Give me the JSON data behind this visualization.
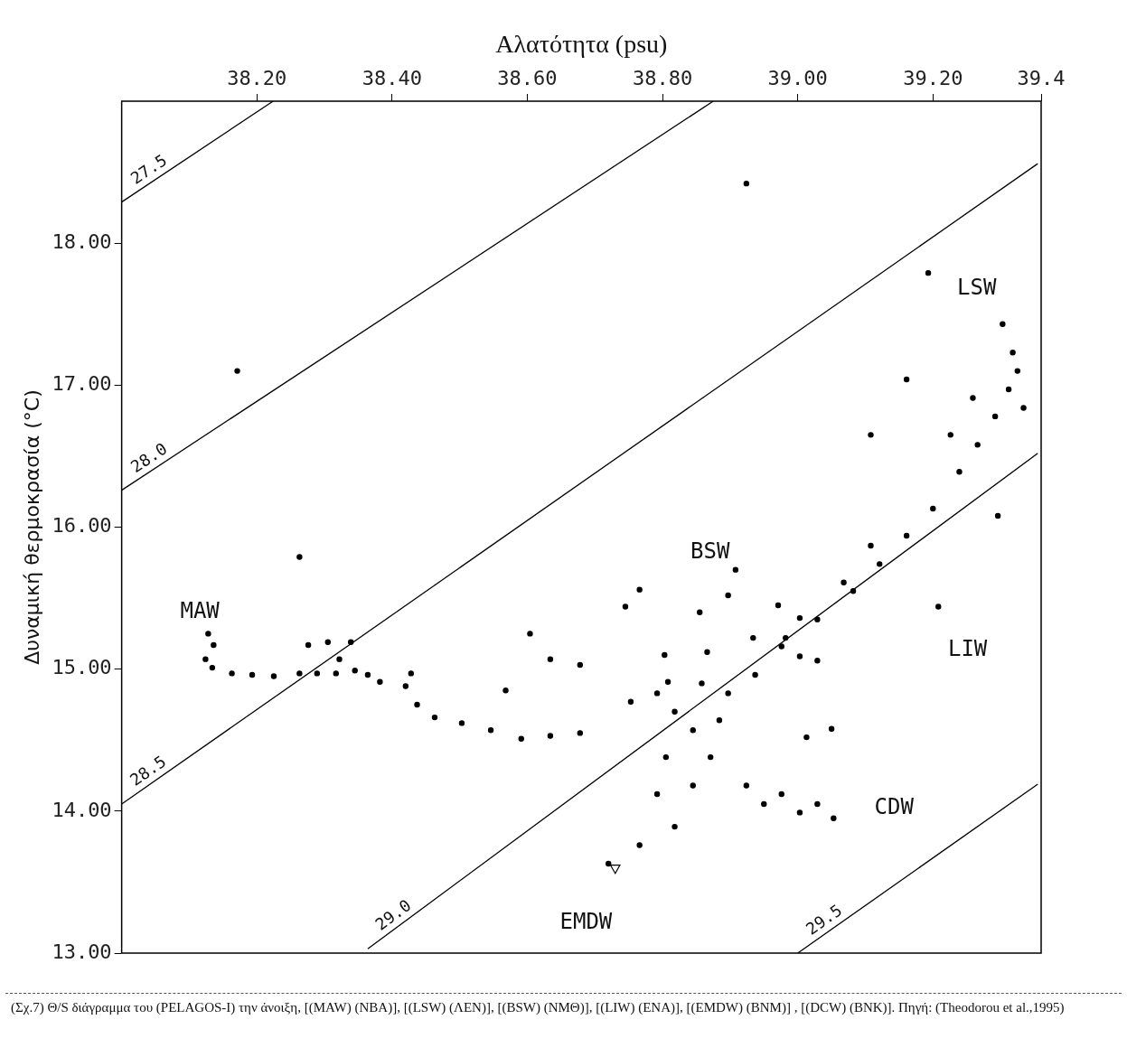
{
  "chart_data": {
    "type": "scatter",
    "xlabel": "Αλατότητα (psu)",
    "ylabel": "Δυναμική θερμοκρασία (°C)",
    "xlim": [
      38.0,
      39.36
    ],
    "xticks": [
      {
        "value": 38.2,
        "label": "38.20"
      },
      {
        "value": 38.4,
        "label": "38.40"
      },
      {
        "value": 38.6,
        "label": "38.60"
      },
      {
        "value": 38.8,
        "label": "38.80"
      },
      {
        "value": 39.0,
        "label": "39.00"
      },
      {
        "value": 39.2,
        "label": "39.20"
      },
      {
        "value": 39.36,
        "label": "39.4"
      }
    ],
    "ylim": [
      13.0,
      19.0
    ],
    "yticks": [
      {
        "value": 13,
        "label": "13.00"
      },
      {
        "value": 14,
        "label": "14.00"
      },
      {
        "value": 15,
        "label": "15.00"
      },
      {
        "value": 16,
        "label": "16.00"
      },
      {
        "value": 17,
        "label": "17.00"
      },
      {
        "value": 18,
        "label": "18.00"
      }
    ],
    "grid": false,
    "legend": false,
    "series": [
      {
        "type": "line",
        "name": "27.5",
        "color": "#000000",
        "marker": "none",
        "x": [
          38.0,
          38.224
        ],
        "values": [
          18.29,
          19.0
        ]
      },
      {
        "type": "line",
        "name": "28.0",
        "color": "#000000",
        "marker": "none",
        "x": [
          38.0,
          38.875
        ],
        "values": [
          16.26,
          19.0
        ]
      },
      {
        "type": "line",
        "name": "28.5",
        "color": "#000000",
        "marker": "none",
        "x": [
          38.0,
          39.355
        ],
        "values": [
          14.05,
          18.56
        ]
      },
      {
        "type": "line",
        "name": "29.0",
        "color": "#000000",
        "marker": "none",
        "x": [
          38.364,
          39.355
        ],
        "values": [
          13.03,
          16.52
        ]
      },
      {
        "type": "line",
        "name": "29.5",
        "color": "#000000",
        "marker": "none",
        "x": [
          39.0,
          39.355
        ],
        "values": [
          13.0,
          14.19
        ]
      },
      {
        "type": "scatter",
        "color": "#000000",
        "marker": "circle",
        "x": [
          38.128,
          38.136,
          38.124,
          38.134,
          38.163,
          38.193,
          38.225,
          38.263,
          38.289,
          38.317,
          38.276,
          38.305,
          38.339,
          38.322,
          38.345,
          38.364,
          38.382,
          38.428,
          38.42,
          38.437,
          38.463,
          38.503,
          38.546,
          38.591,
          38.634,
          38.678,
          38.604,
          38.634,
          38.678,
          38.568,
          38.908,
          38.897,
          38.766,
          38.745,
          38.855,
          38.971,
          39.003,
          38.803,
          38.808,
          38.866,
          38.934,
          38.982,
          39.029,
          39.05,
          39.013,
          39.208,
          38.924,
          39.193,
          38.171,
          39.161,
          39.108,
          39.296,
          38.263,
          38.72,
          38.766,
          38.818,
          38.792,
          38.845,
          38.871,
          38.805,
          38.845,
          38.884,
          38.897,
          38.937,
          38.976,
          39.029,
          39.082,
          39.121,
          39.161,
          39.2,
          39.239,
          39.266,
          39.292,
          39.312,
          39.325,
          39.318,
          39.303,
          39.334,
          39.226,
          39.259,
          39.108,
          39.068,
          39.003,
          38.924,
          38.976,
          39.029,
          39.053,
          39.003,
          38.95,
          38.858,
          38.818,
          38.792,
          38.753
        ],
        "values": [
          15.25,
          15.17,
          15.07,
          15.01,
          14.97,
          14.96,
          14.95,
          14.97,
          14.97,
          14.97,
          15.17,
          15.19,
          15.19,
          15.07,
          14.99,
          14.96,
          14.91,
          14.97,
          14.88,
          14.75,
          14.66,
          14.62,
          14.57,
          14.51,
          14.53,
          14.55,
          15.25,
          15.07,
          15.03,
          14.85,
          15.7,
          15.52,
          15.56,
          15.44,
          15.4,
          15.45,
          15.36,
          15.1,
          14.91,
          15.12,
          15.22,
          15.22,
          15.06,
          14.58,
          14.52,
          15.44,
          18.42,
          17.79,
          17.1,
          17.04,
          16.65,
          16.08,
          15.79,
          13.63,
          13.76,
          13.89,
          14.12,
          14.18,
          14.38,
          14.38,
          14.57,
          14.64,
          14.83,
          14.96,
          15.16,
          15.35,
          15.55,
          15.74,
          15.94,
          16.13,
          16.39,
          16.58,
          16.78,
          16.97,
          17.1,
          17.23,
          17.43,
          16.84,
          16.65,
          16.91,
          15.87,
          15.61,
          15.09,
          14.18,
          14.12,
          14.05,
          13.95,
          13.99,
          14.05,
          14.9,
          14.7,
          14.83,
          14.77
        ]
      },
      {
        "type": "scatter",
        "color": "#000000",
        "marker": "triangle",
        "x": [
          38.73
        ],
        "values": [
          13.6
        ]
      }
    ],
    "annotations": [
      "MAW",
      "LSW",
      "BSW",
      "LIW",
      "CDW",
      "EMDW",
      "(Σχ.7) Θ/S διάγραμμα του (PELAGOS-I) την άνοιξη, [(MAW) (NBA)], [(LSW) (ΛΕΝ)], [(BSW) (ΝΜΘ)], [(LIW) (ΕΝΑ)], [(EMDW) (BNM)] , [(DCW) (BNK)]. Πηγή: (Theodorou et al.,1995)"
    ]
  }
}
